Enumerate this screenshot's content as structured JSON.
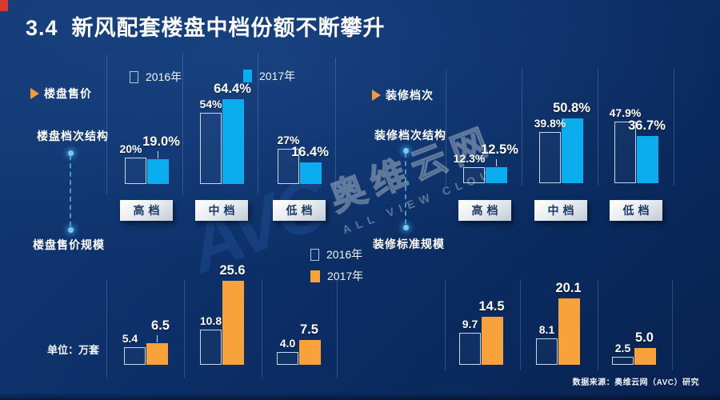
{
  "slide": {
    "title": "3.4  新风配套楼盘中档份额不断攀升",
    "source": "数据来源：奥维云网（AVC）研究",
    "unit_label": "单位：万套",
    "accent_red": "#d9382e",
    "cyan": "#0badee",
    "orange": "#f7a23a"
  },
  "left_section": {
    "header": "楼盘售价",
    "structure_label": "楼盘档次结构",
    "scale_label": "楼盘售价规模"
  },
  "right_section": {
    "header": "装修档次",
    "structure_label": "装修档次结构",
    "scale_label": "装修标准规模"
  },
  "watermark": {
    "logo": "AVC",
    "name": "奥维云网",
    "subtitle": "ALL VIEW CLOUD"
  },
  "chart_data": [
    {
      "id": "price-grade-structure",
      "type": "bar",
      "section": "楼盘售价",
      "title": "楼盘档次结构",
      "categories": [
        "高档",
        "中档",
        "低档"
      ],
      "series": [
        {
          "name": "2016年",
          "style": "outline",
          "values": [
            20,
            54,
            27
          ],
          "labels": [
            "20%",
            "54%",
            "27%"
          ]
        },
        {
          "name": "2017年",
          "style": "solid-cyan",
          "values": [
            19.0,
            64.4,
            16.4
          ],
          "labels": [
            "19.0%",
            "64.4%",
            "16.4%"
          ]
        }
      ],
      "unit": "%",
      "ylim": [
        0,
        70
      ],
      "legend_position": "top",
      "grid": false
    },
    {
      "id": "decoration-grade-structure",
      "type": "bar",
      "section": "装修档次",
      "title": "装修档次结构",
      "categories": [
        "高档",
        "中档",
        "低档"
      ],
      "series": [
        {
          "name": "2016年",
          "style": "outline",
          "values": [
            12.3,
            39.8,
            47.9
          ],
          "labels": [
            "12.3%",
            "39.8%",
            "47.9%"
          ]
        },
        {
          "name": "2017年",
          "style": "solid-cyan",
          "values": [
            12.5,
            50.8,
            36.7
          ],
          "labels": [
            "12.5%",
            "50.8%",
            "36.7%"
          ]
        }
      ],
      "unit": "%",
      "ylim": [
        0,
        55
      ],
      "legend_position": "none",
      "grid": false
    },
    {
      "id": "price-scale",
      "type": "bar",
      "section": "楼盘售价",
      "title": "楼盘售价规模",
      "categories": [
        "高档",
        "中档",
        "低档"
      ],
      "series": [
        {
          "name": "2016年",
          "style": "outline",
          "values": [
            5.4,
            10.8,
            4.0
          ],
          "labels": [
            "5.4",
            "10.8",
            "4.0"
          ]
        },
        {
          "name": "2017年",
          "style": "solid-orange",
          "values": [
            6.5,
            25.6,
            7.5
          ],
          "labels": [
            "6.5",
            "25.6",
            "7.5"
          ]
        }
      ],
      "unit": "万套",
      "ylim": [
        0,
        26
      ],
      "legend_position": "top-right",
      "grid": false
    },
    {
      "id": "decoration-standard-scale",
      "type": "bar",
      "section": "装修档次",
      "title": "装修标准规模",
      "categories": [
        "高档",
        "中档",
        "低档"
      ],
      "series": [
        {
          "name": "2016年",
          "style": "outline",
          "values": [
            9.7,
            8.1,
            2.5
          ],
          "labels": [
            "9.7",
            "8.1",
            "2.5"
          ]
        },
        {
          "name": "2017年",
          "style": "solid-orange",
          "values": [
            14.5,
            20.1,
            5.0
          ],
          "labels": [
            "14.5",
            "20.1",
            "5.0"
          ]
        }
      ],
      "unit": "万套",
      "ylim": [
        0,
        26
      ],
      "legend_position": "none",
      "grid": false
    }
  ]
}
